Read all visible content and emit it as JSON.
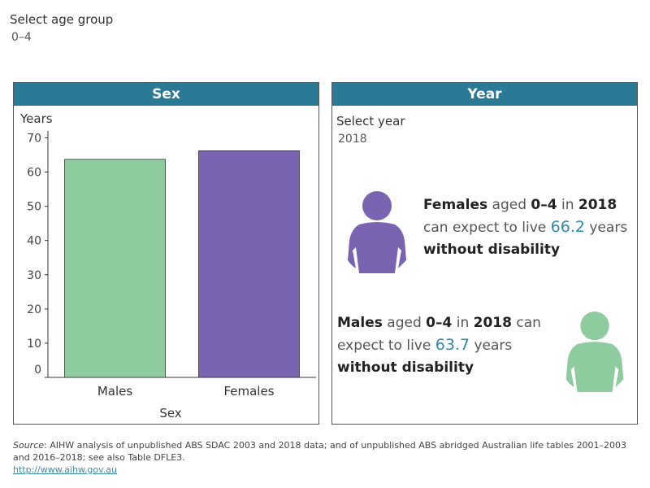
{
  "filter": {
    "label": "Select age group",
    "value": "0–4"
  },
  "sex_panel": {
    "title": "Sex"
  },
  "year_panel": {
    "title": "Year",
    "select_label": "Select year",
    "select_value": "2018",
    "female_story": {
      "sex": "Females",
      "aged": " aged ",
      "age": "0–4",
      "in": " in ",
      "year": "2018",
      "can": "can expect to live ",
      "value": "66.2",
      "years": " years",
      "without": "without disability"
    },
    "male_story": {
      "sex": "Males",
      "aged": " aged ",
      "age": "0–4",
      "in": " in ",
      "year": "2018",
      "can": " can expect to live ",
      "value": "63.7",
      "years": " years",
      "without": "without disability"
    },
    "icons": {
      "female": "person-icon",
      "male": "person-icon"
    }
  },
  "colors": {
    "header": "#2a7a96",
    "males": "#8ecca0",
    "females": "#7a63b0",
    "value": "#2e8ba3"
  },
  "chart_data": {
    "type": "bar",
    "categories": [
      "Males",
      "Females"
    ],
    "values": [
      63.7,
      66.2
    ],
    "ylabel": "Years",
    "xlabel": "Sex",
    "ylim": [
      0,
      72
    ],
    "yticks": [
      0,
      10,
      20,
      30,
      40,
      50,
      60,
      70
    ],
    "grid": false
  },
  "footer": {
    "source_label": "Source",
    "source_text": ": AIHW analysis of unpublished ABS SDAC 2003 and 2018 data; and of unpublished ABS abridged Australian life tables 2001–2003 and 2016–2018; see also Table DFLE3.",
    "link": "http://www.aihw.gov.au"
  }
}
